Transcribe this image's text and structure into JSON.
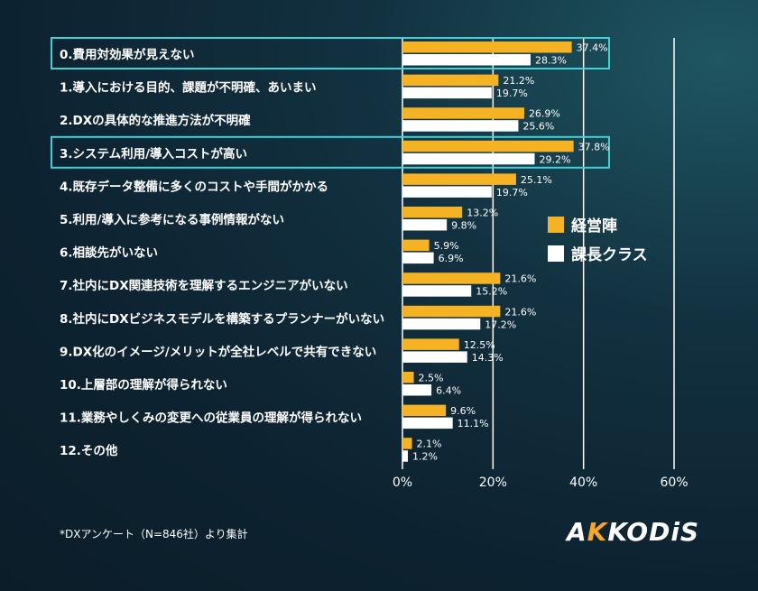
{
  "chart_data": {
    "type": "bar",
    "orientation": "horizontal",
    "categories": [
      "0.費用対効果が見えない",
      "1.導入における目的、課題が不明確、あいまい",
      "2.DXの具体的な推進方法が不明確",
      "3.システム利用/導入コストが高い",
      "4.既存データ整備に多くのコストや手間がかかる",
      "5.利用/導入に参考になる事例情報がない",
      "6.相談先がいない",
      "7.社内にDX関連技術を理解するエンジニアがいない",
      "8.社内にDXビジネスモデルを構築するプランナーがいない",
      "9.DX化のイメージ/メリットが全社レベルで共有できない",
      "10.上層部の理解が得られない",
      "11.業務やしくみの変更への従業員の理解が得られない",
      "12.その他"
    ],
    "series": [
      {
        "name": "経営陣",
        "color": "#f5b324",
        "values": [
          37.4,
          21.2,
          26.9,
          37.8,
          25.1,
          13.2,
          5.9,
          21.6,
          21.6,
          12.5,
          2.5,
          9.6,
          2.1
        ],
        "labels": [
          "37.4%",
          "21.2%",
          "26.9%",
          "37.8%",
          "25.1%",
          "13.2%",
          "5.9%",
          "21.6%",
          "21.6%",
          "12.5%",
          "2.5%",
          "9.6%",
          "2.1%"
        ]
      },
      {
        "name": "課長クラス",
        "color": "#ffffff",
        "values": [
          28.3,
          19.7,
          25.6,
          29.2,
          19.7,
          9.8,
          6.9,
          15.2,
          17.2,
          14.3,
          6.4,
          11.1,
          1.2
        ],
        "labels": [
          "28.3%",
          "19.7%",
          "25.6%",
          "29.2%",
          "19.7%",
          "9.8%",
          "6.9%",
          "15.2%",
          "17.2%",
          "14.3%",
          "6.4%",
          "11.1%",
          "1.2%"
        ]
      }
    ],
    "xlim": [
      0,
      60
    ],
    "xticks": [
      0,
      20,
      40,
      60
    ],
    "xtick_labels": [
      "0%",
      "20%",
      "40%",
      "60%"
    ],
    "grid": "vertical lines at ticks",
    "legend": "right, mid-chart",
    "highlighted_categories": [
      0,
      3
    ],
    "highlight_color": "#3fd3d8"
  },
  "footnote": "*DXアンケート（N=846社）より集計",
  "logo": {
    "part1": "A",
    "part2": "K",
    "part3": "K",
    "part4": "ODiS"
  }
}
